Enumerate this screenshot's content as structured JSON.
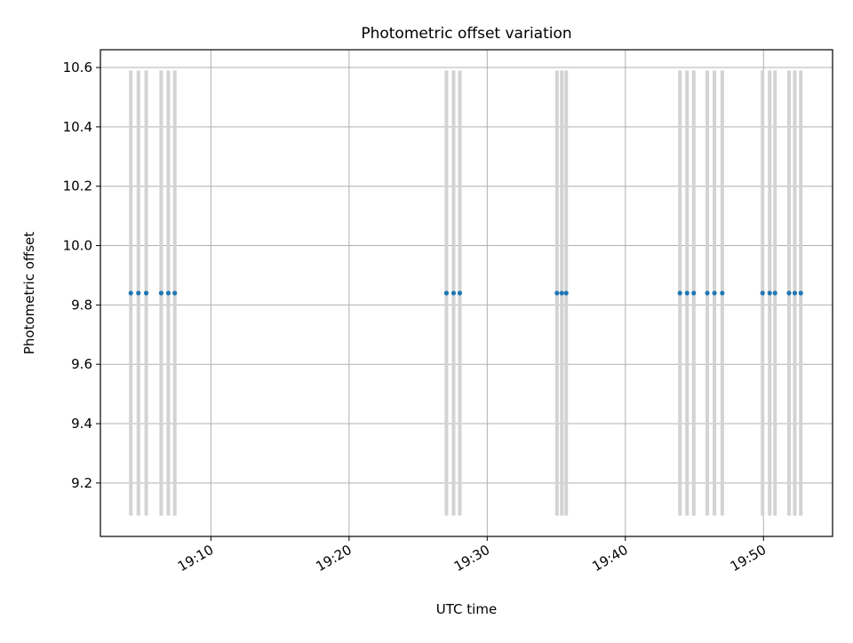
{
  "chart_data": {
    "type": "scatter",
    "title": "Photometric offset variation",
    "xlabel": "UTC time",
    "ylabel": "Photometric offset",
    "xlim": [
      "19:02:00",
      "19:55:00"
    ],
    "ylim": [
      9.02,
      10.66
    ],
    "x_ticks": [
      "19:10",
      "19:20",
      "19:30",
      "19:40",
      "19:50"
    ],
    "y_ticks": [
      9.2,
      9.4,
      9.6,
      9.8,
      10.0,
      10.2,
      10.4,
      10.6
    ],
    "y_tick_labels": [
      "9.2",
      "9.4",
      "9.6",
      "9.8",
      "10.0",
      "10.2",
      "10.4",
      "10.6"
    ],
    "grid": true,
    "series": [
      {
        "color": "#1f77b4",
        "marker": "dot",
        "x": [
          "19:04:12",
          "19:04:45",
          "19:05:19",
          "19:06:24",
          "19:06:55",
          "19:07:23",
          "19:27:03",
          "19:27:34",
          "19:28:01",
          "19:35:03",
          "19:35:24",
          "19:35:43",
          "19:43:57",
          "19:44:28",
          "19:44:57",
          "19:45:56",
          "19:46:27",
          "19:47:01",
          "19:49:56",
          "19:50:27",
          "19:50:50",
          "19:51:51",
          "19:52:16",
          "19:52:42"
        ],
        "y": [
          9.84,
          9.84,
          9.84,
          9.84,
          9.84,
          9.84,
          9.84,
          9.84,
          9.84,
          9.84,
          9.84,
          9.84,
          9.84,
          9.84,
          9.84,
          9.84,
          9.84,
          9.84,
          9.84,
          9.84,
          9.84,
          9.84,
          9.84,
          9.84
        ]
      }
    ],
    "error_bars": {
      "color": "#d3d3d3",
      "low": 9.09,
      "high": 10.59
    }
  }
}
